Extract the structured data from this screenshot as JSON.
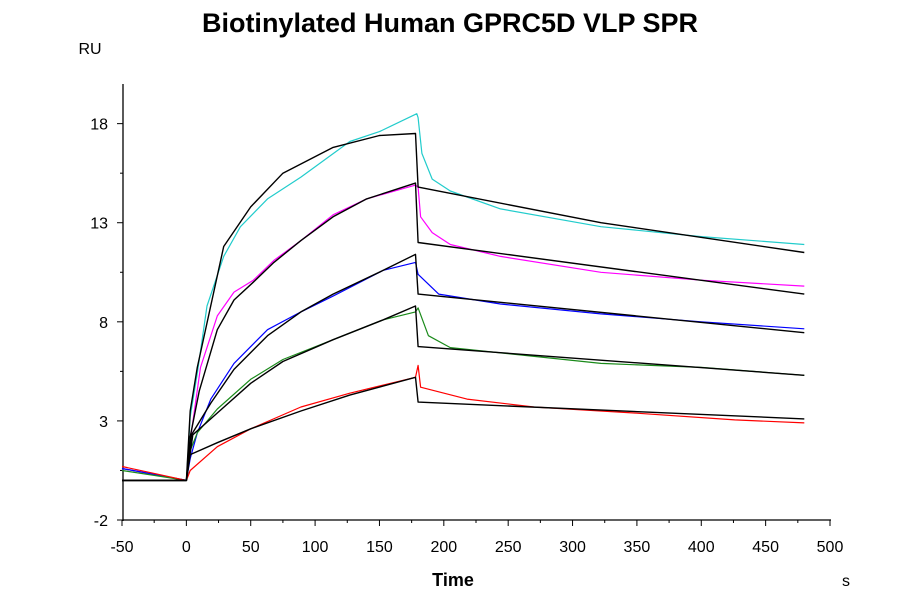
{
  "chart_data": {
    "type": "line",
    "title": "Biotinylated Human GPRC5D VLP SPR",
    "xlabel": "Time",
    "xunit": "s",
    "ylabel": "RU",
    "xlim": [
      -50,
      500
    ],
    "ylim": [
      -2,
      20
    ],
    "xticks": [
      -50,
      0,
      50,
      100,
      150,
      200,
      250,
      300,
      350,
      400,
      450,
      500
    ],
    "yticks": [
      -2,
      3,
      8,
      13,
      18
    ],
    "grid": false,
    "legend": "none",
    "series": [
      {
        "color": "#22cccc",
        "kind": "data",
        "points": [
          [
            -50,
            0.6
          ],
          [
            -25,
            0.3
          ],
          [
            0,
            0.0
          ],
          [
            3,
            3.2
          ],
          [
            8.5,
            5.4
          ],
          [
            16,
            8.8
          ],
          [
            29,
            11.3
          ],
          [
            42,
            12.8
          ],
          [
            63,
            14.2
          ],
          [
            89,
            15.3
          ],
          [
            127,
            17.1
          ],
          [
            150,
            17.6
          ],
          [
            179,
            18.5
          ],
          [
            180,
            18.3
          ],
          [
            183,
            16.5
          ],
          [
            191,
            15.2
          ],
          [
            205,
            14.6
          ],
          [
            218,
            14.3
          ],
          [
            244,
            13.7
          ],
          [
            322,
            12.8
          ],
          [
            400,
            12.3
          ],
          [
            480,
            11.9
          ]
        ]
      },
      {
        "color": "#ff00ff",
        "kind": "data",
        "points": [
          [
            -50,
            0.6
          ],
          [
            -25,
            0.3
          ],
          [
            0,
            0.0
          ],
          [
            3,
            2.0
          ],
          [
            11,
            5.7
          ],
          [
            24,
            8.3
          ],
          [
            37,
            9.5
          ],
          [
            52,
            10.1
          ],
          [
            68,
            11.1
          ],
          [
            89,
            12.1
          ],
          [
            114,
            13.4
          ],
          [
            140,
            14.2
          ],
          [
            178,
            14.9
          ],
          [
            180,
            14.8
          ],
          [
            182,
            13.3
          ],
          [
            191,
            12.5
          ],
          [
            205,
            11.9
          ],
          [
            244,
            11.3
          ],
          [
            322,
            10.5
          ],
          [
            400,
            10.1
          ],
          [
            480,
            9.8
          ]
        ]
      },
      {
        "color": "#0000ff",
        "kind": "data",
        "points": [
          [
            -50,
            0.6
          ],
          [
            -25,
            0.3
          ],
          [
            0,
            0.0
          ],
          [
            3,
            1.1
          ],
          [
            8.5,
            2.4
          ],
          [
            19,
            4.1
          ],
          [
            37,
            5.9
          ],
          [
            63,
            7.6
          ],
          [
            89,
            8.5
          ],
          [
            114,
            9.3
          ],
          [
            153,
            10.6
          ],
          [
            178,
            11.0
          ],
          [
            180,
            10.4
          ],
          [
            196,
            9.4
          ],
          [
            244,
            8.9
          ],
          [
            322,
            8.4
          ],
          [
            400,
            8.0
          ],
          [
            480,
            7.65
          ]
        ]
      },
      {
        "color": "#1a8a1a",
        "kind": "data",
        "points": [
          [
            -50,
            0.5
          ],
          [
            -25,
            0.25
          ],
          [
            0,
            0.0
          ],
          [
            3,
            1.5
          ],
          [
            8.5,
            2.4
          ],
          [
            24,
            3.6
          ],
          [
            50,
            5.1
          ],
          [
            75,
            6.1
          ],
          [
            114,
            7.1
          ],
          [
            153,
            8.1
          ],
          [
            178,
            8.5
          ],
          [
            180,
            8.7
          ],
          [
            188,
            7.3
          ],
          [
            205,
            6.7
          ],
          [
            322,
            5.9
          ],
          [
            400,
            5.7
          ],
          [
            480,
            5.3
          ]
        ]
      },
      {
        "color": "#ff0000",
        "kind": "data",
        "points": [
          [
            -50,
            0.7
          ],
          [
            -25,
            0.35
          ],
          [
            0,
            0.0
          ],
          [
            3,
            0.5
          ],
          [
            24,
            1.7
          ],
          [
            50,
            2.6
          ],
          [
            89,
            3.7
          ],
          [
            127,
            4.4
          ],
          [
            178,
            5.2
          ],
          [
            180,
            5.8
          ],
          [
            182,
            4.7
          ],
          [
            218,
            4.1
          ],
          [
            270,
            3.7
          ],
          [
            348,
            3.4
          ],
          [
            426,
            3.05
          ],
          [
            480,
            2.9
          ]
        ]
      },
      {
        "color": "#000000",
        "kind": "fit",
        "points": [
          [
            -50,
            0
          ],
          [
            0,
            0
          ],
          [
            3,
            3.5
          ],
          [
            8.5,
            5.7
          ],
          [
            29,
            11.8
          ],
          [
            50,
            13.8
          ],
          [
            75,
            15.5
          ],
          [
            114,
            16.8
          ],
          [
            150,
            17.4
          ],
          [
            178,
            17.5
          ],
          [
            180,
            14.8
          ],
          [
            322,
            13.0
          ],
          [
            480,
            11.5
          ]
        ]
      },
      {
        "color": "#000000",
        "kind": "fit",
        "points": [
          [
            -50,
            0
          ],
          [
            0,
            0
          ],
          [
            3,
            2.2
          ],
          [
            10,
            4.5
          ],
          [
            24,
            7.6
          ],
          [
            37,
            9.1
          ],
          [
            52,
            10.0
          ],
          [
            68,
            11.0
          ],
          [
            89,
            12.1
          ],
          [
            114,
            13.3
          ],
          [
            140,
            14.2
          ],
          [
            178,
            15.0
          ],
          [
            180,
            12.0
          ],
          [
            480,
            9.4
          ]
        ]
      },
      {
        "color": "#000000",
        "kind": "fit",
        "points": [
          [
            -50,
            0
          ],
          [
            0,
            0
          ],
          [
            4,
            2.3
          ],
          [
            19,
            3.9
          ],
          [
            37,
            5.6
          ],
          [
            63,
            7.3
          ],
          [
            89,
            8.5
          ],
          [
            114,
            9.4
          ],
          [
            153,
            10.6
          ],
          [
            178,
            11.4
          ],
          [
            180,
            9.4
          ],
          [
            480,
            7.45
          ]
        ]
      },
      {
        "color": "#000000",
        "kind": "fit",
        "points": [
          [
            -50,
            0
          ],
          [
            0,
            0
          ],
          [
            5,
            2.3
          ],
          [
            24,
            3.4
          ],
          [
            50,
            4.9
          ],
          [
            75,
            6.0
          ],
          [
            114,
            7.1
          ],
          [
            153,
            8.1
          ],
          [
            178,
            8.8
          ],
          [
            180,
            6.75
          ],
          [
            480,
            5.3
          ]
        ]
      },
      {
        "color": "#000000",
        "kind": "fit",
        "points": [
          [
            -50,
            0
          ],
          [
            0,
            0
          ],
          [
            3,
            1.3
          ],
          [
            24,
            1.9
          ],
          [
            50,
            2.6
          ],
          [
            89,
            3.5
          ],
          [
            127,
            4.3
          ],
          [
            178,
            5.2
          ],
          [
            180,
            3.95
          ],
          [
            480,
            3.1
          ]
        ]
      }
    ]
  }
}
